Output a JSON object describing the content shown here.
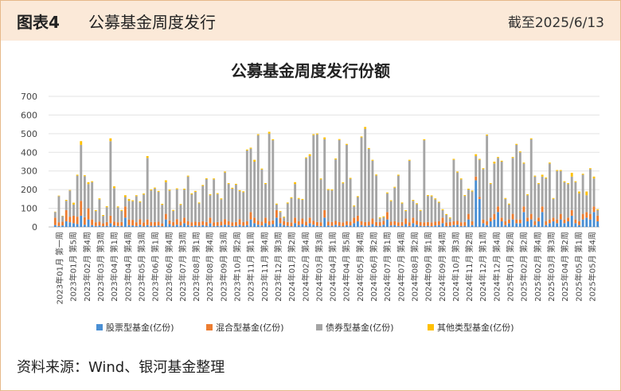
{
  "header": {
    "figure_label": "图表4",
    "title": "公募基金周度发行",
    "date": "截至2025/6/13"
  },
  "source": "资料来源：Wind、银河基金整理",
  "colors": {
    "equity": "#4a8fd4",
    "mixed": "#ed7d31",
    "bond": "#a5a5a5",
    "other": "#ffc000"
  },
  "chart_data": {
    "type": "bar",
    "stacked": true,
    "title": "公募基金周度发行份额",
    "ylim": [
      0,
      700
    ],
    "yticks": [
      0,
      100,
      200,
      300,
      400,
      500,
      600,
      700
    ],
    "legend_position": "bottom",
    "series": [
      {
        "name": "股票型基金(亿份)",
        "values": [
          10,
          5,
          8,
          30,
          25,
          20,
          15,
          60,
          12,
          40,
          10,
          5,
          8,
          4,
          6,
          20,
          8,
          5,
          6,
          50,
          10,
          8,
          5,
          12,
          4,
          10,
          6,
          6,
          8,
          4,
          40,
          15,
          6,
          12,
          8,
          20,
          10,
          5,
          8,
          6,
          10,
          6,
          20,
          5,
          6,
          8,
          12,
          10,
          5,
          6,
          12,
          6,
          10,
          40,
          20,
          12,
          8,
          20,
          10,
          15,
          50,
          20,
          10,
          6,
          4,
          20,
          10,
          15,
          8,
          20,
          12,
          6,
          5,
          50,
          8,
          6,
          12,
          6,
          4,
          10,
          8,
          20,
          30,
          10,
          6,
          8,
          15,
          6,
          6,
          12,
          40,
          8,
          10,
          5,
          6,
          15,
          5,
          20,
          12,
          6,
          5,
          6,
          4,
          8,
          10,
          20,
          4,
          6,
          10,
          12,
          5,
          6,
          40,
          10,
          250,
          150,
          20,
          10,
          30,
          40,
          80,
          30,
          10,
          20,
          40,
          20,
          20,
          80,
          30,
          40,
          10,
          30,
          80,
          10,
          20,
          30,
          20,
          40,
          20,
          30,
          60,
          20,
          10,
          40,
          50,
          40,
          80,
          30
        ]
      },
      {
        "name": "混合型基金(亿份)",
        "values": [
          40,
          20,
          20,
          60,
          30,
          40,
          40,
          80,
          40,
          60,
          30,
          20,
          20,
          15,
          20,
          40,
          20,
          20,
          20,
          60,
          30,
          30,
          20,
          30,
          20,
          30,
          20,
          20,
          20,
          15,
          30,
          20,
          20,
          30,
          20,
          30,
          20,
          20,
          20,
          20,
          20,
          20,
          30,
          20,
          20,
          20,
          30,
          20,
          20,
          20,
          30,
          20,
          20,
          40,
          30,
          20,
          20,
          30,
          20,
          20,
          40,
          30,
          20,
          20,
          20,
          30,
          20,
          30,
          20,
          30,
          20,
          20,
          20,
          40,
          20,
          20,
          20,
          20,
          20,
          20,
          20,
          30,
          30,
          20,
          20,
          20,
          30,
          20,
          20,
          20,
          40,
          20,
          20,
          20,
          20,
          30,
          20,
          30,
          20,
          20,
          20,
          20,
          20,
          20,
          20,
          30,
          20,
          20,
          20,
          20,
          20,
          20,
          30,
          20,
          20,
          10,
          20,
          20,
          20,
          30,
          30,
          20,
          20,
          20,
          30,
          20,
          20,
          30,
          20,
          30,
          20,
          20,
          30,
          20,
          20,
          20,
          20,
          30,
          20,
          20,
          30,
          20,
          20,
          30,
          30,
          30,
          30,
          30
        ]
      },
      {
        "name": "债券型基金(亿份)",
        "values": [
          30,
          140,
          30,
          50,
          140,
          60,
          220,
          300,
          220,
          130,
          200,
          60,
          120,
          40,
          80,
          400,
          180,
          80,
          60,
          50,
          100,
          100,
          140,
          90,
          150,
          330,
          170,
          180,
          160,
          100,
          170,
          160,
          60,
          160,
          90,
          150,
          240,
          150,
          160,
          100,
          190,
          230,
          120,
          230,
          150,
          120,
          250,
          200,
          180,
          200,
          150,
          160,
          380,
          340,
          300,
          460,
          280,
          180,
          470,
          430,
          30,
          30,
          20,
          100,
          130,
          180,
          120,
          100,
          340,
          330,
          460,
          470,
          230,
          380,
          170,
          170,
          330,
          440,
          210,
          410,
          230,
          60,
          100,
          450,
          500,
          390,
          310,
          250,
          20,
          20,
          100,
          110,
          180,
          250,
          100,
          40,
          330,
          90,
          90,
          60,
          440,
          140,
          140,
          120,
          100,
          40,
          40,
          20,
          330,
          260,
          230,
          140,
          130,
          160,
          110,
          200,
          270,
          460,
          180,
          270,
          260,
          300,
          120,
          80,
          300,
          400,
          360,
          230,
          120,
          400,
          240,
          180,
          160,
          230,
          300,
          100,
          260,
          230,
          200,
          180,
          180,
          200,
          150,
          210,
          90,
          240,
          150,
          30
        ]
      },
      {
        "name": "其他类型基金(亿份)",
        "values": [
          2,
          3,
          2,
          5,
          3,
          10,
          5,
          20,
          5,
          10,
          5,
          5,
          5,
          5,
          5,
          15,
          10,
          5,
          5,
          10,
          10,
          5,
          5,
          5,
          5,
          10,
          5,
          5,
          5,
          5,
          10,
          5,
          5,
          5,
          5,
          5,
          5,
          5,
          5,
          5,
          5,
          5,
          5,
          5,
          5,
          5,
          5,
          5,
          5,
          5,
          5,
          5,
          5,
          5,
          10,
          5,
          5,
          5,
          10,
          5,
          5,
          5,
          5,
          5,
          5,
          10,
          5,
          5,
          5,
          10,
          5,
          5,
          5,
          10,
          5,
          5,
          5,
          5,
          5,
          5,
          5,
          5,
          5,
          5,
          10,
          5,
          5,
          5,
          5,
          5,
          5,
          5,
          5,
          5,
          5,
          5,
          5,
          5,
          5,
          5,
          5,
          5,
          5,
          5,
          5,
          5,
          5,
          5,
          5,
          5,
          5,
          5,
          5,
          5,
          10,
          5,
          5,
          5,
          5,
          10,
          5,
          5,
          5,
          5,
          5,
          5,
          5,
          5,
          5,
          5,
          5,
          5,
          10,
          5,
          5,
          5,
          5,
          5,
          5,
          5,
          20,
          5,
          10,
          5,
          20,
          5,
          10,
          5
        ]
      }
    ],
    "x_tick_labels": [
      "2023年01月 第一周",
      "2023年01月 第5周",
      "2023年02月 第4周",
      "2023年03月 第3周",
      "2023年04月 第1周",
      "2023年04月 第4周",
      "2023年05月 第3周",
      "2023年06月 第1周",
      "2023年06月 第4周",
      "2023年07月 第3周",
      "2023年08月 第1周",
      "2023年08月 第4周",
      "2023年09月 第3周",
      "2023年10月 第2周",
      "2023年11月 第1周",
      "2023年11月 第4周",
      "2023年12月 第3周",
      "2024年01月 第2周",
      "2024年02月 第4周",
      "2024年03月 第3周",
      "2024年04月 第1周",
      "2024年04月 第5周",
      "2024年05月 第4周",
      "2024年06月 第2周",
      "2024年07月 第1周",
      "2024年07月 第4周",
      "2024年08月 第2周",
      "2024年09月 第1周",
      "2024年09月 第4周",
      "2024年10月 第3周",
      "2024年11月 第2周",
      "2024年12月 第1周",
      "2024年12月 第4周",
      "2025年01月 第2周",
      "2025年02月 第2周",
      "2025年02月 第4周",
      "2025年03月 第3周",
      "2025年04月 第2周",
      "2025年05月 第1周",
      "2025年05月 第4周"
    ]
  }
}
